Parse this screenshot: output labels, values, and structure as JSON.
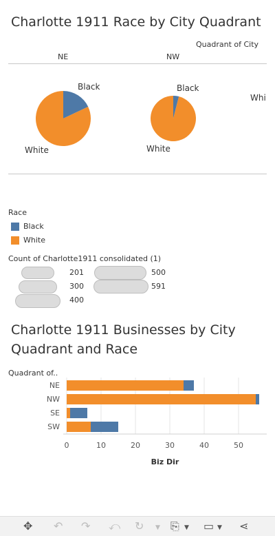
{
  "dashboard": {
    "colors": {
      "black": "#4e79a7",
      "white": "#f28e2b"
    }
  },
  "pie_section": {
    "title": "Charlotte 1911 Race by City Quadrant",
    "column_header": "Quadrant of City",
    "columns": [
      "NE",
      "NW"
    ],
    "cut_label": "Whi"
  },
  "legend": {
    "title": "Race",
    "items": [
      {
        "label": "Black",
        "color": "#4e79a7"
      },
      {
        "label": "White",
        "color": "#f28e2b"
      }
    ]
  },
  "size_legend": {
    "title": "Count of Charlotte1911 consolidated (1)",
    "values": [
      "201",
      "300",
      "400",
      "500",
      "591"
    ]
  },
  "bar_section": {
    "title_line1": "Charlotte 1911 Businesses by City",
    "title_line2": "Quadrant and Race",
    "row_header": "Quadrant of.."
  },
  "chart_data": [
    {
      "type": "pie",
      "title": "Charlotte 1911 Race by City Quadrant",
      "facet": "Quadrant of City",
      "panels": [
        {
          "category": "NE",
          "slices": [
            {
              "name": "Black",
              "value": 18
            },
            {
              "name": "White",
              "value": 82
            }
          ]
        },
        {
          "category": "NW",
          "slices": [
            {
              "name": "Black",
              "value": 4
            },
            {
              "name": "White",
              "value": 96
            }
          ]
        }
      ]
    },
    {
      "type": "bar",
      "orientation": "horizontal",
      "stacked": true,
      "title": "Charlotte 1911 Businesses by City Quadrant and Race",
      "categories": [
        "NE",
        "NW",
        "SE",
        "SW"
      ],
      "series": [
        {
          "name": "White",
          "values": [
            34,
            55,
            1,
            7
          ]
        },
        {
          "name": "Black",
          "values": [
            3,
            1,
            5,
            8
          ]
        }
      ],
      "xlabel": "Biz Dir",
      "ylabel": "Quadrant of..",
      "xticks": [
        "0",
        "10",
        "20",
        "30",
        "40",
        "50"
      ],
      "xlim": [
        0,
        58
      ],
      "grid": true
    }
  ],
  "toolbar": {
    "icons": [
      "move-icon",
      "undo-icon",
      "redo-icon",
      "revert-icon",
      "refresh-icon",
      "download-icon",
      "device-icon",
      "share-icon"
    ]
  }
}
